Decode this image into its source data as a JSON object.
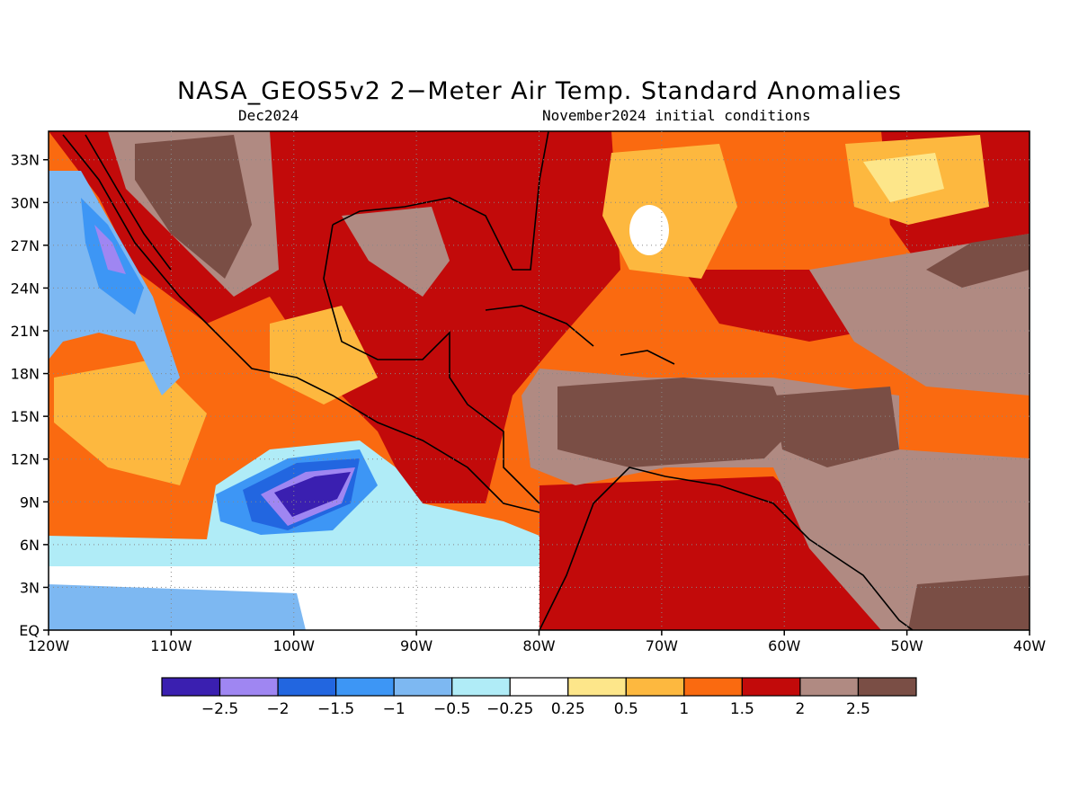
{
  "title": "NASA_GEOS5v2 2−Meter Air Temp. Standard Anomalies",
  "subtitle_left": "Dec2024",
  "subtitle_right": "November2024 initial conditions",
  "map": {
    "lon_range": [
      -120,
      -40
    ],
    "lat_range": [
      0,
      35
    ],
    "lon_tick_labels": [
      "120W",
      "110W",
      "100W",
      "90W",
      "80W",
      "70W",
      "60W",
      "50W",
      "40W"
    ],
    "lat_tick_labels": [
      "EQ",
      "3N",
      "6N",
      "9N",
      "12N",
      "15N",
      "18N",
      "21N",
      "24N",
      "27N",
      "30N",
      "33N"
    ],
    "gridlines": "dotted"
  },
  "colorbar": {
    "bins": [
      {
        "color": "#3a1fb0"
      },
      {
        "color": "#9f86f2"
      },
      {
        "color": "#2266e0"
      },
      {
        "color": "#3d96f5"
      },
      {
        "color": "#7db8f2"
      },
      {
        "color": "#b0ecf7"
      },
      {
        "color": "#ffffff"
      },
      {
        "color": "#fde68a"
      },
      {
        "color": "#fdb83f"
      },
      {
        "color": "#fa6a10"
      },
      {
        "color": "#c20a0a"
      },
      {
        "color": "#b08a82"
      },
      {
        "color": "#7a4e45"
      }
    ],
    "labels": [
      "−2.5",
      "−2",
      "−1.5",
      "−1",
      "−0.5",
      "−0.25",
      "0.25",
      "0.5",
      "1",
      "1.5",
      "2",
      "2.5"
    ]
  }
}
